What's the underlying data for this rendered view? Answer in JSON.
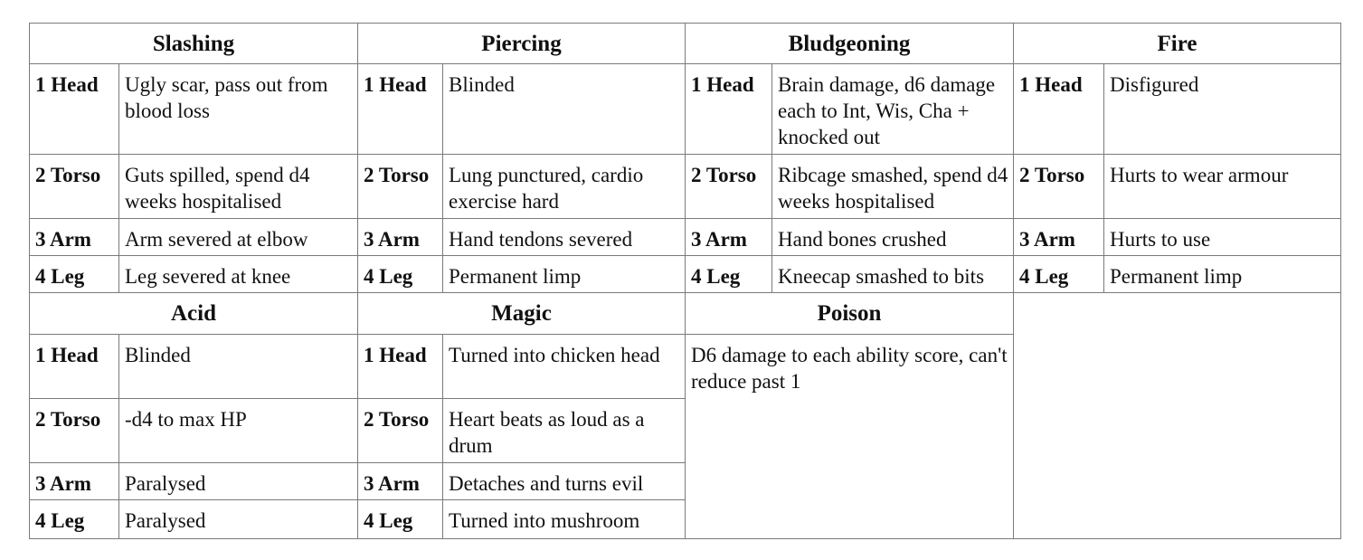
{
  "top": [
    {
      "title": "Slashing",
      "rows": [
        {
          "loc": "1 Head",
          "text": "Ugly scar, pass out from blood loss"
        },
        {
          "loc": "2 Torso",
          "text": "Guts spilled, spend d4 weeks hospitalised"
        },
        {
          "loc": "3 Arm",
          "text": "Arm severed at elbow"
        },
        {
          "loc": "4 Leg",
          "text": "Leg severed at knee"
        }
      ]
    },
    {
      "title": "Piercing",
      "rows": [
        {
          "loc": "1 Head",
          "text": "Blinded"
        },
        {
          "loc": "2 Torso",
          "text": "Lung punctured, cardio exercise hard"
        },
        {
          "loc": "3 Arm",
          "text": "Hand tendons severed"
        },
        {
          "loc": "4 Leg",
          "text": "Permanent limp"
        }
      ]
    },
    {
      "title": "Bludgeoning",
      "rows": [
        {
          "loc": "1 Head",
          "text": "Brain damage, d6 damage each to Int, Wis, Cha + knocked out"
        },
        {
          "loc": "2 Torso",
          "text": "Ribcage smashed, spend d4 weeks hospitalised"
        },
        {
          "loc": "3 Arm",
          "text": "Hand bones crushed"
        },
        {
          "loc": "4 Leg",
          "text": "Kneecap smashed to bits"
        }
      ]
    },
    {
      "title": "Fire",
      "rows": [
        {
          "loc": "1 Head",
          "text": "Disfigured"
        },
        {
          "loc": "2 Torso",
          "text": "Hurts to wear armour"
        },
        {
          "loc": "3 Arm",
          "text": "Hurts to use"
        },
        {
          "loc": "4 Leg",
          "text": "Permanent limp"
        }
      ]
    }
  ],
  "bottom": {
    "acid": {
      "title": "Acid",
      "rows": [
        {
          "loc": "1 Head",
          "text": "Blinded"
        },
        {
          "loc": "2 Torso",
          "text": "-d4 to max HP"
        },
        {
          "loc": "3 Arm",
          "text": "Paralysed"
        },
        {
          "loc": "4 Leg",
          "text": "Paralysed"
        }
      ]
    },
    "magic": {
      "title": "Magic",
      "rows": [
        {
          "loc": "1 Head",
          "text": "Turned into chicken head"
        },
        {
          "loc": "2 Torso",
          "text": "Heart beats as loud as a drum"
        },
        {
          "loc": "3 Arm",
          "text": "Detaches and turns evil"
        },
        {
          "loc": "4 Leg",
          "text": "Turned into mushroom"
        }
      ]
    },
    "poison": {
      "title": "Poison",
      "text": "D6 damage to each ability score, can't reduce past 1"
    }
  }
}
